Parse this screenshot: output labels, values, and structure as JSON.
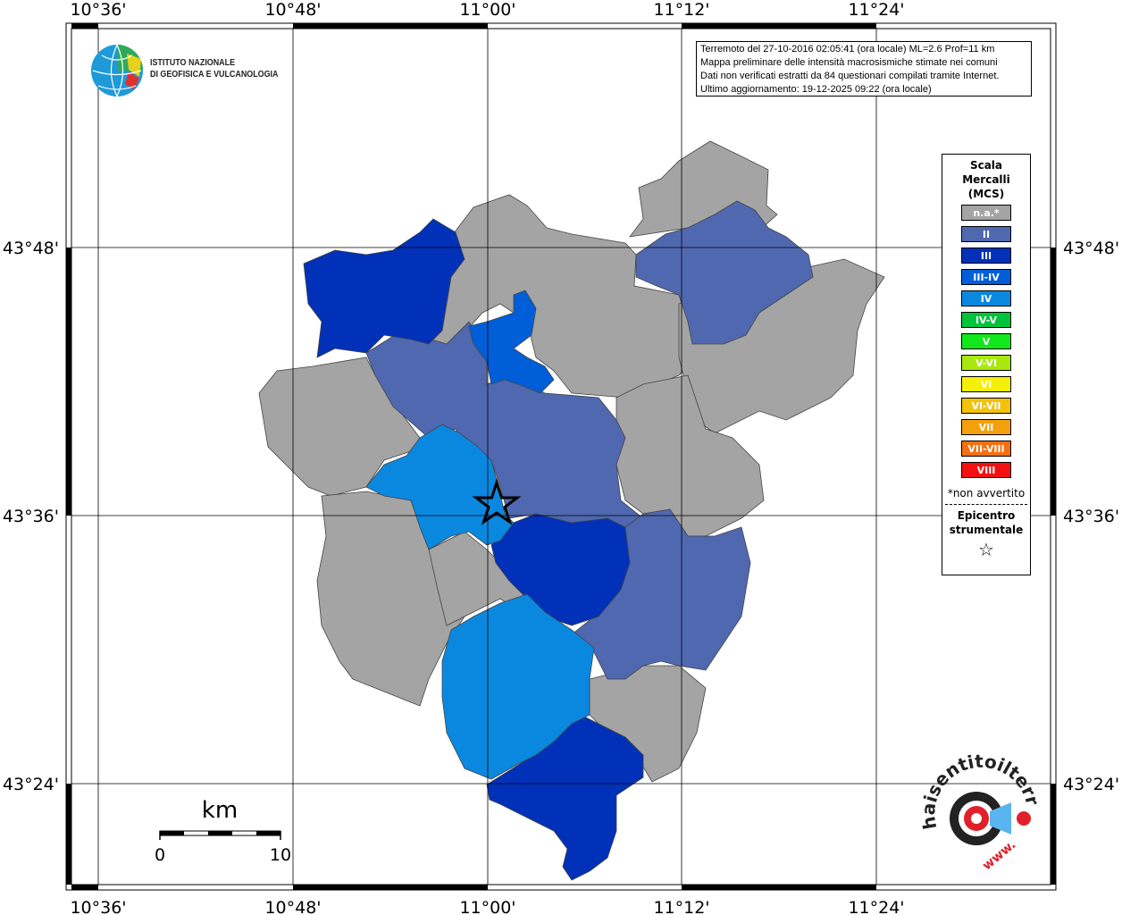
{
  "axis_labels": {
    "longitudes": [
      "10°36'",
      "10°48'",
      "11°00'",
      "11°12'",
      "11°24'"
    ],
    "latitudes": [
      "43°48'",
      "43°36'",
      "43°24'"
    ]
  },
  "info": {
    "line1": "Terremoto del 27-10-2016 02:05:41 (ora locale) ML=2.6 Prof=11 km",
    "line2": "Mappa preliminare delle intensità macrosismiche stimate nei comuni",
    "line3": "Dati non verificati estratti da 84 questionari compilati tramite Internet.",
    "line4": "Ultimo aggiornamento: 19-12-2025 09:22 (ora locale)"
  },
  "logo": {
    "line1": "ISTITUTO NAZIONALE",
    "line2": "DI GEOFISICA E VULCANOLOGIA"
  },
  "legend": {
    "title_line1": "Scala",
    "title_line2": "Mercalli",
    "title_line3": "(MCS)",
    "items": [
      {
        "label": "n.a.*",
        "color": "#a4a4a4"
      },
      {
        "label": "II",
        "color": "#4f68b0"
      },
      {
        "label": "III",
        "color": "#0031b8"
      },
      {
        "label": "III-IV",
        "color": "#005ed8"
      },
      {
        "label": "IV",
        "color": "#0a88e0"
      },
      {
        "label": "IV-V",
        "color": "#00c33c"
      },
      {
        "label": "V",
        "color": "#10e81a"
      },
      {
        "label": "V-VI",
        "color": "#a8e80e"
      },
      {
        "label": "VI",
        "color": "#f4f00a"
      },
      {
        "label": "VI-VII",
        "color": "#f4c20a"
      },
      {
        "label": "VII",
        "color": "#f4a00a"
      },
      {
        "label": "VII-VIII",
        "color": "#f47010"
      },
      {
        "label": "VIII",
        "color": "#f41010"
      }
    ],
    "note": "*non avvertito",
    "epicenter_line1": "Epicentro",
    "epicenter_line2": "strumentale",
    "epicenter_symbol": "☆"
  },
  "scalebar": {
    "unit": "km",
    "start": "0",
    "end": "10"
  },
  "watermark": {
    "text": "haisentitoilterremoto.it",
    "prefix": "www."
  },
  "colors": {
    "na": "#a4a4a4",
    "II": "#4f68b0",
    "III": "#0031b8",
    "III-IV": "#005ed8",
    "IV": "#0a88e0"
  }
}
